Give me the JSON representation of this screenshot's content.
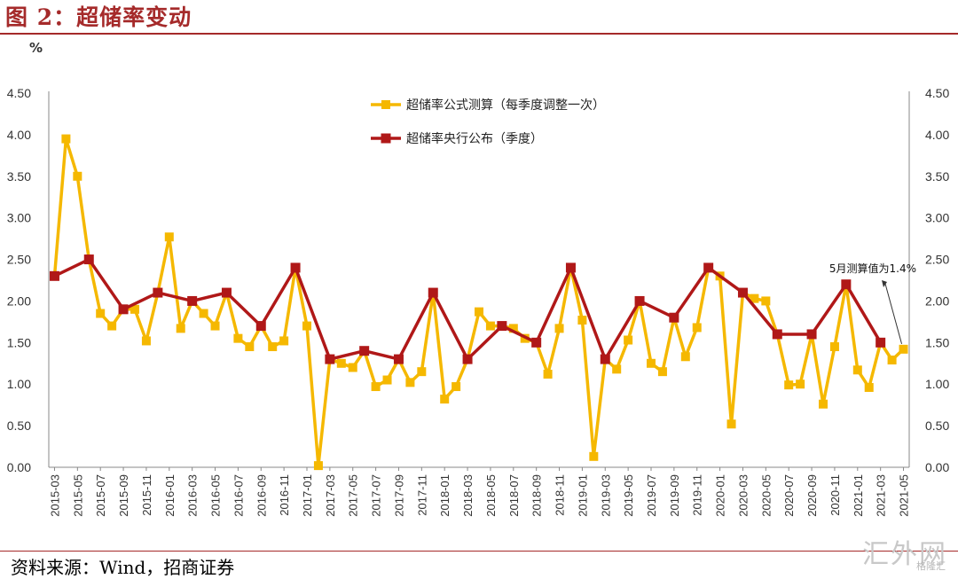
{
  "header": {
    "title": "图 2：超储率变动"
  },
  "footer": {
    "source": "资料来源：Wind，招商证券"
  },
  "watermark": {
    "main": "汇外网",
    "sub": "格隆汇"
  },
  "colors": {
    "accent": "#a52a2a",
    "series1": "#f5b800",
    "series2": "#b01818"
  },
  "chart_data": {
    "type": "line",
    "unit_label": "%",
    "ylim": [
      0,
      4.5
    ],
    "yticks": [
      "0.00",
      "0.50",
      "1.00",
      "1.50",
      "2.00",
      "2.50",
      "3.00",
      "3.50",
      "4.00",
      "4.50"
    ],
    "x": [
      "2015-03",
      "2015-04",
      "2015-05",
      "2015-06",
      "2015-07",
      "2015-08",
      "2015-09",
      "2015-10",
      "2015-11",
      "2015-12",
      "2016-01",
      "2016-02",
      "2016-03",
      "2016-04",
      "2016-05",
      "2016-06",
      "2016-07",
      "2016-08",
      "2016-09",
      "2016-10",
      "2016-11",
      "2016-12",
      "2017-01",
      "2017-02",
      "2017-03",
      "2017-04",
      "2017-05",
      "2017-06",
      "2017-07",
      "2017-08",
      "2017-09",
      "2017-10",
      "2017-11",
      "2017-12",
      "2018-01",
      "2018-02",
      "2018-03",
      "2018-04",
      "2018-05",
      "2018-06",
      "2018-07",
      "2018-08",
      "2018-09",
      "2018-10",
      "2018-11",
      "2018-12",
      "2019-01",
      "2019-02",
      "2019-03",
      "2019-04",
      "2019-05",
      "2019-06",
      "2019-07",
      "2019-08",
      "2019-09",
      "2019-10",
      "2019-11",
      "2019-12",
      "2020-01",
      "2020-02",
      "2020-03",
      "2020-04",
      "2020-05",
      "2020-06",
      "2020-07",
      "2020-08",
      "2020-09",
      "2020-10",
      "2020-11",
      "2020-12",
      "2021-01",
      "2021-02",
      "2021-03",
      "2021-04",
      "2021-05"
    ],
    "xtick_labels": [
      "2015-03",
      "2015-05",
      "2015-07",
      "2015-09",
      "2015-11",
      "2016-01",
      "2016-03",
      "2016-05",
      "2016-07",
      "2016-09",
      "2016-11",
      "2017-01",
      "2017-03",
      "2017-05",
      "2017-07",
      "2017-09",
      "2017-11",
      "2018-01",
      "2018-03",
      "2018-05",
      "2018-07",
      "2018-09",
      "2018-11",
      "2019-01",
      "2019-03",
      "2019-05",
      "2019-07",
      "2019-09",
      "2019-11",
      "2020-01",
      "2020-03",
      "2020-05",
      "2020-07",
      "2020-09",
      "2020-11",
      "2021-01",
      "2021-03",
      "2021-05"
    ],
    "series": [
      {
        "name": "超储率公式测算（每季度调整一次）",
        "values": [
          2.3,
          3.95,
          3.5,
          2.5,
          1.85,
          1.7,
          1.9,
          1.9,
          1.52,
          2.1,
          2.77,
          1.67,
          2.0,
          1.85,
          1.7,
          2.1,
          1.55,
          1.45,
          1.7,
          1.45,
          1.52,
          2.4,
          1.7,
          0.02,
          1.3,
          1.25,
          1.2,
          1.4,
          0.97,
          1.05,
          1.3,
          1.02,
          1.15,
          2.1,
          0.82,
          0.97,
          1.3,
          1.87,
          1.7,
          1.7,
          1.67,
          1.55,
          1.5,
          1.12,
          1.67,
          2.4,
          1.77,
          0.13,
          1.3,
          1.18,
          1.53,
          2.0,
          1.25,
          1.15,
          1.8,
          1.33,
          1.68,
          2.4,
          2.3,
          0.52,
          2.1,
          2.03,
          2.0,
          1.6,
          0.99,
          1.0,
          1.6,
          0.76,
          1.45,
          2.2,
          1.17,
          0.96,
          1.5,
          1.29,
          1.42
        ]
      },
      {
        "name": "超储率央行公布（季度）",
        "values": [
          2.3,
          null,
          null,
          2.5,
          null,
          null,
          1.9,
          null,
          null,
          2.1,
          null,
          null,
          2.0,
          null,
          null,
          2.1,
          null,
          null,
          1.7,
          null,
          null,
          2.4,
          null,
          null,
          1.3,
          null,
          null,
          1.4,
          null,
          null,
          1.3,
          null,
          null,
          2.1,
          null,
          null,
          1.3,
          null,
          null,
          1.7,
          null,
          null,
          1.5,
          null,
          null,
          2.4,
          null,
          null,
          1.3,
          null,
          null,
          2.0,
          null,
          null,
          1.8,
          null,
          null,
          2.4,
          null,
          null,
          2.1,
          null,
          null,
          1.6,
          null,
          null,
          1.6,
          null,
          null,
          2.2,
          null,
          null,
          1.5,
          null,
          null
        ]
      }
    ],
    "annotation": {
      "text": "5月测算值为1.4%",
      "target_index": 74
    },
    "legend": "top-center",
    "grid": false
  }
}
